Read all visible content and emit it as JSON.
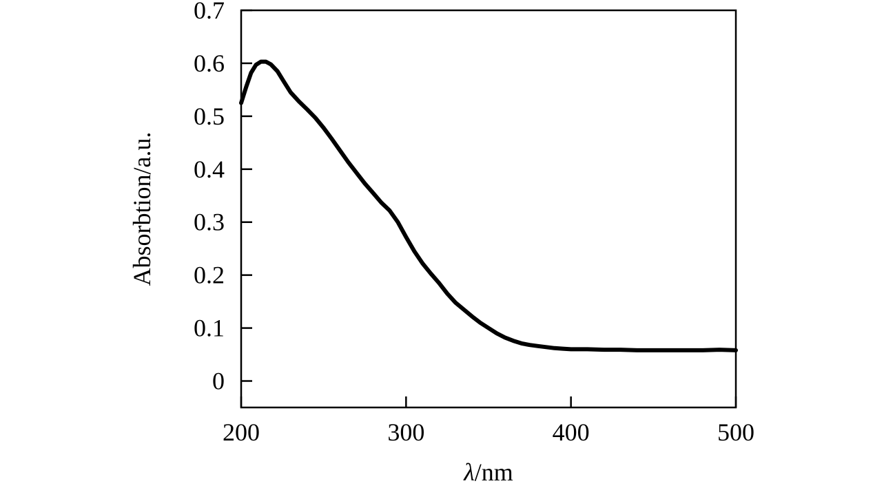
{
  "chart_data": {
    "type": "line",
    "title": "",
    "xlabel_symbol": "λ",
    "xlabel_unit": "/nm",
    "ylabel": "Absorbtion/a.u.",
    "xlim": [
      200,
      500
    ],
    "ylim": [
      -0.05,
      0.7
    ],
    "x_ticks": [
      200,
      300,
      400,
      500
    ],
    "x_tick_labels": [
      "200",
      "300",
      "400",
      "500"
    ],
    "y_ticks": [
      0,
      0.1,
      0.2,
      0.3,
      0.4,
      0.5,
      0.6,
      0.7
    ],
    "y_tick_labels": [
      "0",
      "0.1",
      "0.2",
      "0.3",
      "0.4",
      "0.5",
      "0.6",
      "0.7"
    ],
    "grid": false,
    "legend": "none",
    "line_color": "#000000",
    "series": [
      {
        "x": [
          200,
          203,
          206,
          209,
          212,
          215,
          218,
          222,
          226,
          230,
          235,
          240,
          245,
          250,
          255,
          260,
          265,
          270,
          275,
          280,
          285,
          290,
          295,
          300,
          305,
          310,
          315,
          320,
          325,
          330,
          335,
          340,
          345,
          350,
          355,
          360,
          365,
          370,
          375,
          380,
          385,
          390,
          395,
          400,
          410,
          420,
          430,
          440,
          450,
          460,
          470,
          480,
          490,
          500
        ],
        "y": [
          0.525,
          0.555,
          0.582,
          0.597,
          0.603,
          0.603,
          0.598,
          0.585,
          0.565,
          0.545,
          0.528,
          0.513,
          0.497,
          0.478,
          0.457,
          0.435,
          0.413,
          0.393,
          0.373,
          0.355,
          0.337,
          0.322,
          0.3,
          0.272,
          0.245,
          0.222,
          0.203,
          0.185,
          0.165,
          0.148,
          0.135,
          0.122,
          0.11,
          0.1,
          0.09,
          0.082,
          0.076,
          0.071,
          0.068,
          0.066,
          0.064,
          0.062,
          0.061,
          0.06,
          0.06,
          0.059,
          0.059,
          0.058,
          0.058,
          0.058,
          0.058,
          0.058,
          0.059,
          0.058
        ]
      }
    ]
  }
}
